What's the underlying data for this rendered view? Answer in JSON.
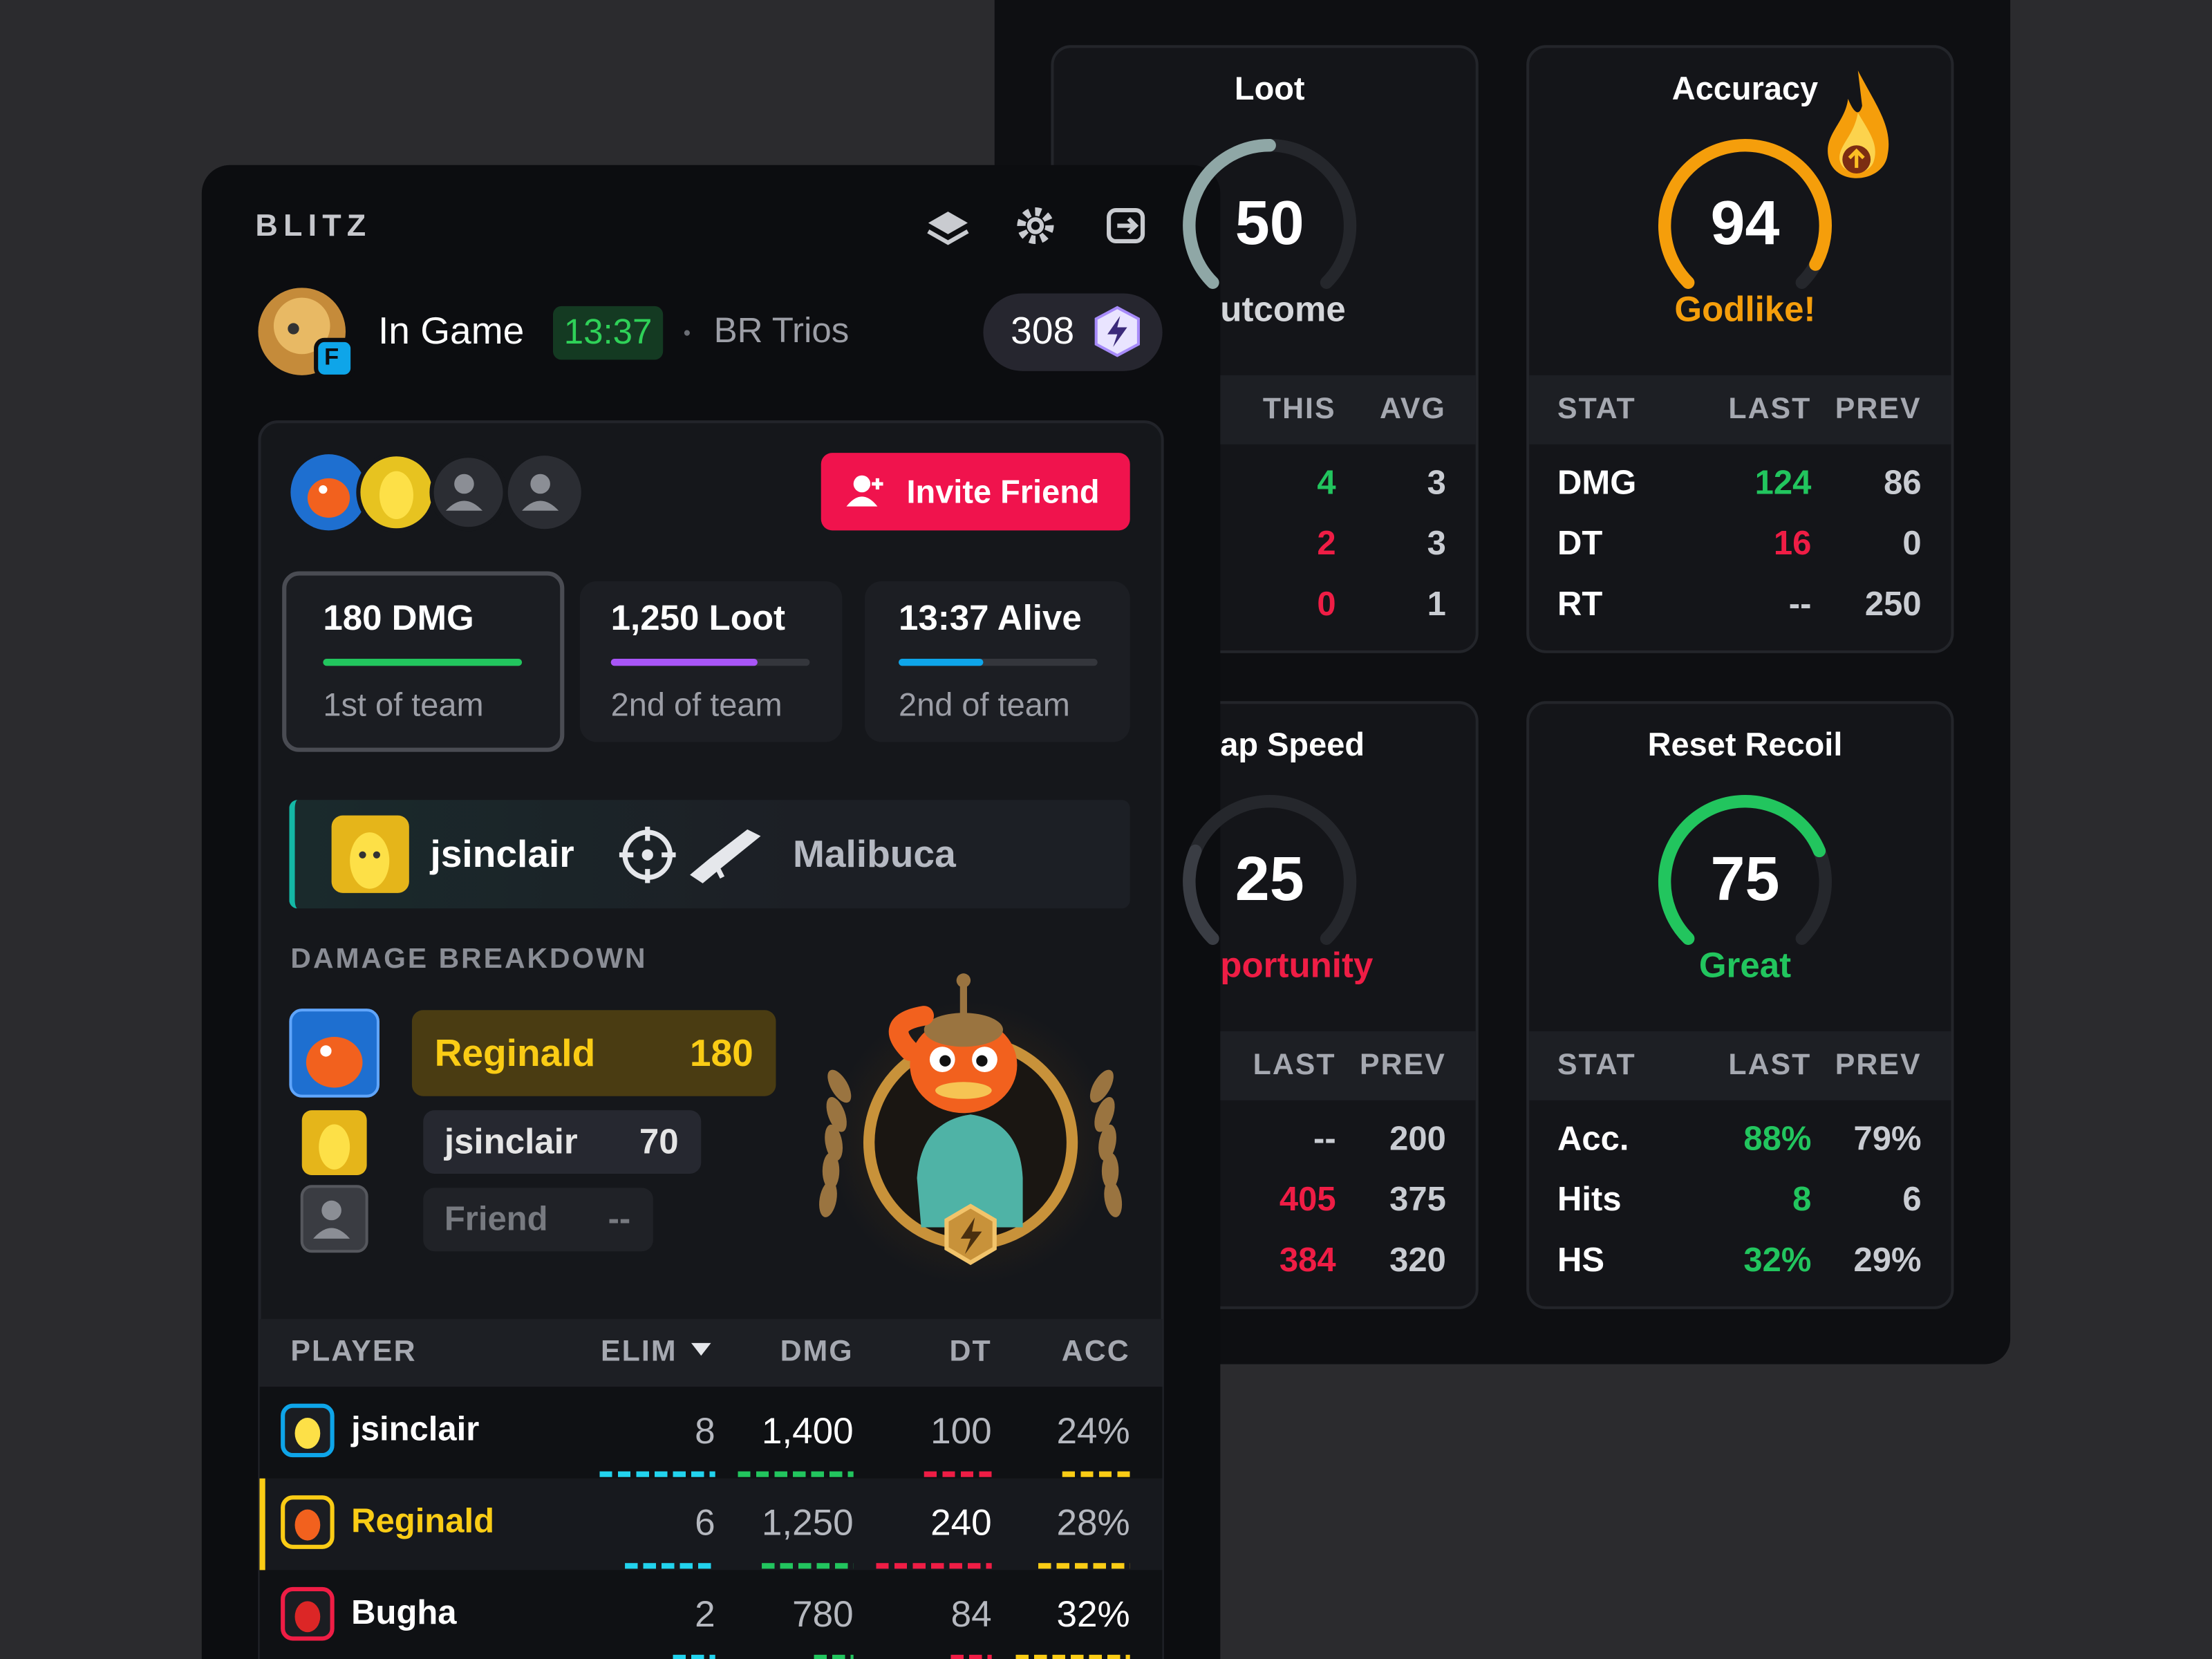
{
  "brand": "BLITZ",
  "status": {
    "state": "In Game",
    "timer": "13:37",
    "mode": "BR Trios",
    "points": "308",
    "badge": "F"
  },
  "invite": "Invite Friend",
  "summary": [
    {
      "value": "180 DMG",
      "rank": "1st of team"
    },
    {
      "value": "1,250 Loot",
      "rank": "2nd of team"
    },
    {
      "value": "13:37 Alive",
      "rank": "2nd of team"
    }
  ],
  "kill_feed": {
    "player": "jsinclair",
    "victim": "Malibuca"
  },
  "damage_breakdown": {
    "title": "DAMAGE BREAKDOWN",
    "rows": [
      {
        "name": "Reginald",
        "value": "180"
      },
      {
        "name": "jsinclair",
        "value": "70"
      },
      {
        "name": "Friend",
        "value": "--"
      }
    ]
  },
  "table": {
    "headers": [
      "PLAYER",
      "ELIM",
      "DMG",
      "DT",
      "ACC"
    ],
    "rows": [
      [
        "jsinclair",
        "8",
        "1,400",
        "100",
        "24%"
      ],
      [
        "Reginald",
        "6",
        "1,250",
        "240",
        "28%"
      ],
      [
        "Bugha",
        "2",
        "780",
        "84",
        "32%"
      ]
    ]
  },
  "cards": [
    {
      "title": "Loot",
      "score": 50,
      "verdict": "utcome",
      "color": "#8fa7a6",
      "headers": [
        "THIS",
        "AVG"
      ],
      "rows": [
        [
          "4",
          "3"
        ],
        [
          "2",
          "3"
        ],
        [
          "0",
          "1"
        ]
      ]
    },
    {
      "title": "Accuracy",
      "score": 94,
      "verdict": "Godlike!",
      "color": "#f59e0b",
      "headers": [
        "STAT",
        "LAST",
        "PREV"
      ],
      "rows": [
        [
          "DMG",
          "124",
          "86"
        ],
        [
          "DT",
          "16",
          "0"
        ],
        [
          "RT",
          "--",
          "250"
        ]
      ]
    },
    {
      "title": "ap Speed",
      "score": 25,
      "verdict": "portunity",
      "color": "#3a3d44",
      "headers": [
        "LAST",
        "PREV"
      ],
      "rows": [
        [
          "--",
          "200"
        ],
        [
          "405",
          "375"
        ],
        [
          "384",
          "320"
        ]
      ]
    },
    {
      "title": "Reset Recoil",
      "score": 75,
      "verdict": "Great",
      "color": "#22c55e",
      "headers": [
        "STAT",
        "LAST",
        "PREV"
      ],
      "rows": [
        [
          "Acc.",
          "88%",
          "79%"
        ],
        [
          "Hits",
          "8",
          "6"
        ],
        [
          "HS",
          "32%",
          "29%"
        ]
      ]
    }
  ]
}
